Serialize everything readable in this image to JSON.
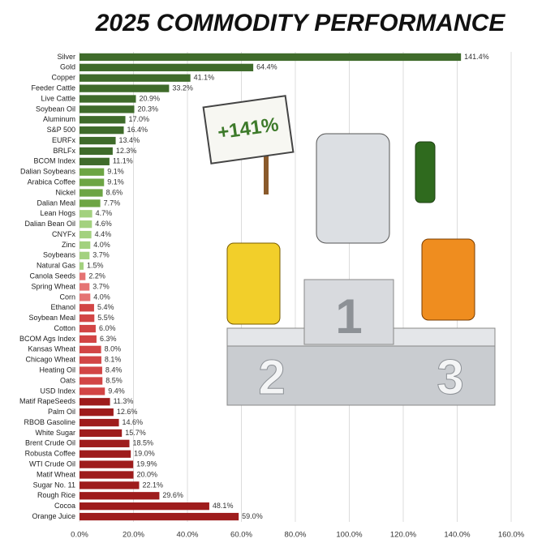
{
  "chart_data": {
    "type": "barh",
    "title": "2025 COMMODITY PERFORMANCE",
    "categories": [
      "Silver",
      "Gold",
      "Copper",
      "Feeder Cattle",
      "Live Cattle",
      "Soybean Oil",
      "Aluminum",
      "S&P 500",
      "EURFx",
      "BRLFx",
      "BCOM Index",
      "Dalian Soybeans",
      "Arabica Coffee",
      "Nickel",
      "Dalian Meal",
      "Lean Hogs",
      "Dalian Bean Oil",
      "CNYFx",
      "Zinc",
      "Soybeans",
      "Natural Gas",
      "Canola Seeds",
      "Spring Wheat",
      "Corn",
      "Ethanol",
      "Soybean Meal",
      "Cotton",
      "BCOM Ags Index",
      "Kansas Wheat",
      "Chicago Wheat",
      "Heating Oil",
      "Oats",
      "USD Index",
      "Matif RapeSeeds",
      "Palm Oil",
      "RBOB Gasoline",
      "White Sugar",
      "Brent Crude Oil",
      "Robusta Coffee",
      "WTI Crude Oil",
      "Matif Wheat",
      "Sugar No. 11",
      "Rough Rice",
      "Cocoa",
      "Orange Juice"
    ],
    "values": [
      141.4,
      64.4,
      41.1,
      33.2,
      20.9,
      20.3,
      17.0,
      16.4,
      13.4,
      12.3,
      11.1,
      9.1,
      9.1,
      8.6,
      7.7,
      4.7,
      4.6,
      4.4,
      4.0,
      3.7,
      1.5,
      2.2,
      3.7,
      4.0,
      5.4,
      5.5,
      6.0,
      6.3,
      8.0,
      8.1,
      8.4,
      8.5,
      9.4,
      11.3,
      12.6,
      14.6,
      15.7,
      18.5,
      19.0,
      19.9,
      20.0,
      22.1,
      29.6,
      48.1,
      59.0
    ],
    "value_labels": [
      "141.4%",
      "64.4%",
      "41.1%",
      "33.2%",
      "20.9%",
      "20.3%",
      "17.0%",
      "16.4%",
      "13.4%",
      "12.3%",
      "11.1%",
      "9.1%",
      "9.1%",
      "8.6%",
      "7.7%",
      "4.7%",
      "4.6%",
      "4.4%",
      "4.0%",
      "3.7%",
      "1.5%",
      "2.2%",
      "3.7%",
      "4.0%",
      "5.4%",
      "5.5%",
      "6.0%",
      "6.3%",
      "8.0%",
      "8.1%",
      "8.4%",
      "8.5%",
      "9.4%",
      "11.3%",
      "12.6%",
      "14.6%",
      "15.7%",
      "18.5%",
      "19.0%",
      "19.9%",
      "20.0%",
      "22.1%",
      "29.6%",
      "48.1%",
      "59.0%"
    ],
    "colors": [
      "#3f6b2b",
      "#3f6b2b",
      "#3f6b2b",
      "#3f6b2b",
      "#3f6b2b",
      "#3f6b2b",
      "#3f6b2b",
      "#3f6b2b",
      "#3f6b2b",
      "#3f6b2b",
      "#3f6b2b",
      "#6da544",
      "#6da544",
      "#6da544",
      "#6da544",
      "#a3d17f",
      "#a3d17f",
      "#a3d17f",
      "#a3d17f",
      "#a3d17f",
      "#a3d17f",
      "#e57373",
      "#e57373",
      "#e57373",
      "#d24545",
      "#d24545",
      "#d24545",
      "#d24545",
      "#d24545",
      "#d24545",
      "#d24545",
      "#d24545",
      "#d24545",
      "#9e1c1c",
      "#9e1c1c",
      "#9e1c1c",
      "#9e1c1c",
      "#9e1c1c",
      "#9e1c1c",
      "#9e1c1c",
      "#9e1c1c",
      "#9e1c1c",
      "#9e1c1c",
      "#9e1c1c",
      "#9e1c1c"
    ],
    "xlim": [
      0,
      160
    ],
    "xticks": [
      {
        "value": 0,
        "label": "0.0%"
      },
      {
        "value": 20,
        "label": "20.0%"
      },
      {
        "value": 40,
        "label": "40.0%"
      },
      {
        "value": 60,
        "label": "60.0%"
      },
      {
        "value": 80,
        "label": "80.0%"
      },
      {
        "value": 100,
        "label": "100.0%"
      },
      {
        "value": 120,
        "label": "120.0%"
      },
      {
        "value": 140,
        "label": "140.0%"
      },
      {
        "value": 160,
        "label": "160.0%"
      }
    ],
    "grid": true,
    "annotations": {
      "sign": "+141%",
      "podium": [
        "1",
        "2",
        "3"
      ]
    }
  }
}
